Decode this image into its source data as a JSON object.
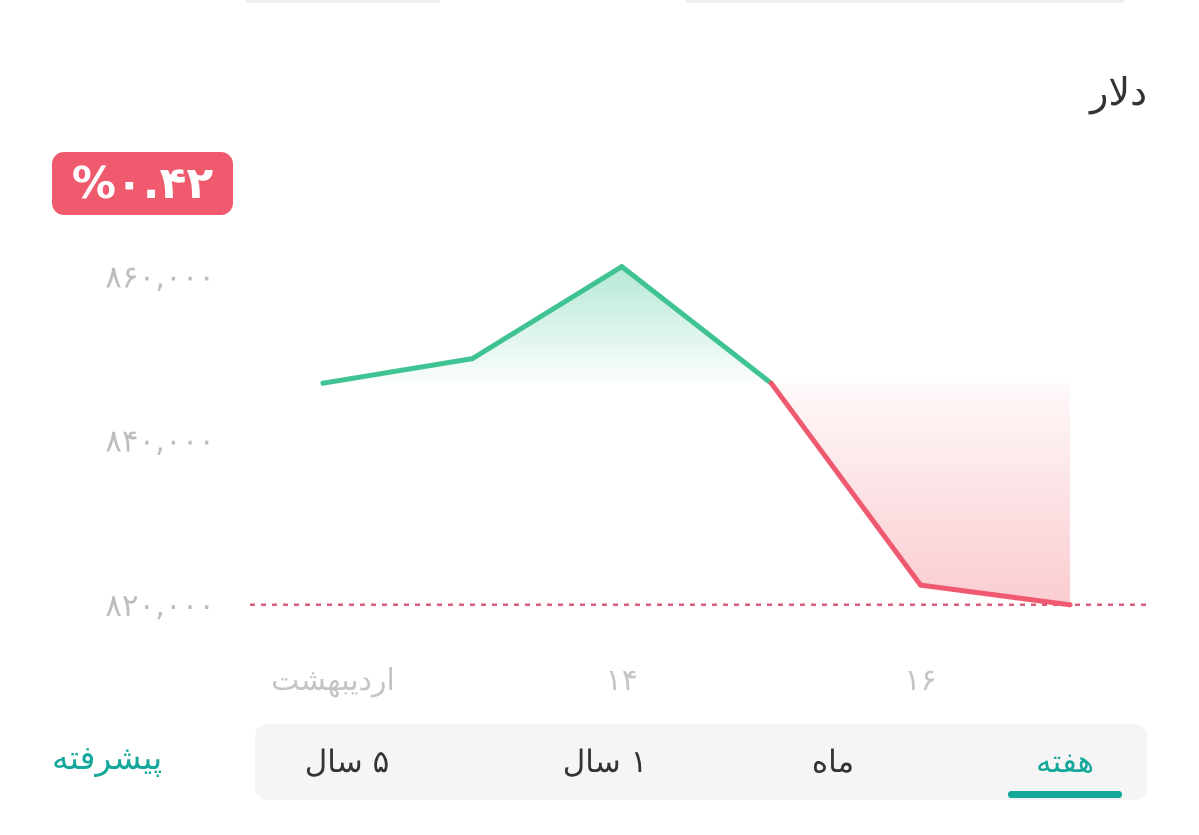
{
  "title": "دلار",
  "change_badge": {
    "text": "%۰.۴۲",
    "color": "#f05a6e"
  },
  "colors": {
    "up": "#3fc392",
    "down": "#ef5a70",
    "baseline": "#d9607a",
    "accent": "#14a79a",
    "axis_text": "#bdbdbd"
  },
  "chart_data": {
    "type": "line",
    "title": "",
    "xlabel": "",
    "ylabel": "",
    "x_tick_labels": [
      "اردیبهشت",
      "۱۴",
      "۱۶"
    ],
    "y_tick_values": [
      820000,
      840000,
      860000
    ],
    "y_tick_labels": [
      "۸۲۰,۰۰۰",
      "۸۴۰,۰۰۰",
      "۸۶۰,۰۰۰"
    ],
    "ylim": [
      819000,
      861400
    ],
    "reference_value": 847000,
    "min_line_value": 820000,
    "grid": false,
    "points": [
      847000,
      850000,
      861200,
      847000,
      822400,
      820000
    ]
  },
  "tabs": [
    {
      "label": "هفته",
      "active": true
    },
    {
      "label": "ماه",
      "active": false
    },
    {
      "label": "۱ سال",
      "active": false
    },
    {
      "label": "۵ سال",
      "active": false
    }
  ],
  "advanced_label": "پیشرفته"
}
